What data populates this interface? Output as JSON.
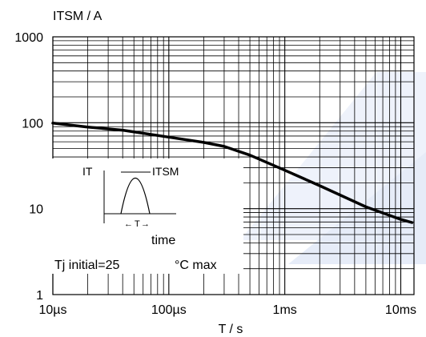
{
  "chart_data": {
    "type": "line",
    "ylabel": "ITSM / A",
    "xlabel": "T / s",
    "scale": {
      "x": "log",
      "y": "log"
    },
    "xlim": [
      1e-05,
      0.013
    ],
    "ylim": [
      1,
      1000
    ],
    "x_ticks": [
      {
        "value": 1e-05,
        "label": "10µs"
      },
      {
        "value": 0.0001,
        "label": "100µs"
      },
      {
        "value": 0.001,
        "label": "1ms"
      },
      {
        "value": 0.01,
        "label": "10ms"
      }
    ],
    "y_ticks": [
      {
        "value": 1,
        "label": "1"
      },
      {
        "value": 10,
        "label": "10"
      },
      {
        "value": 100,
        "label": "100"
      },
      {
        "value": 1000,
        "label": "1000"
      }
    ],
    "grid": true,
    "series": [
      {
        "x": [
          1e-05,
          2e-05,
          4e-05,
          0.0001,
          0.0002,
          0.0003,
          0.0005,
          0.001,
          0.002,
          0.005,
          0.01,
          0.0125
        ],
        "y": [
          99,
          89,
          82,
          68,
          59,
          53,
          42,
          28,
          18.5,
          10.5,
          7.5,
          6.9
        ]
      }
    ],
    "inset": {
      "label_it": "IT",
      "label_itsm": "ITSM",
      "label_t": "T",
      "label_time": "time",
      "label_tj": "Tj initial=25",
      "label_deg": "°C max"
    }
  }
}
